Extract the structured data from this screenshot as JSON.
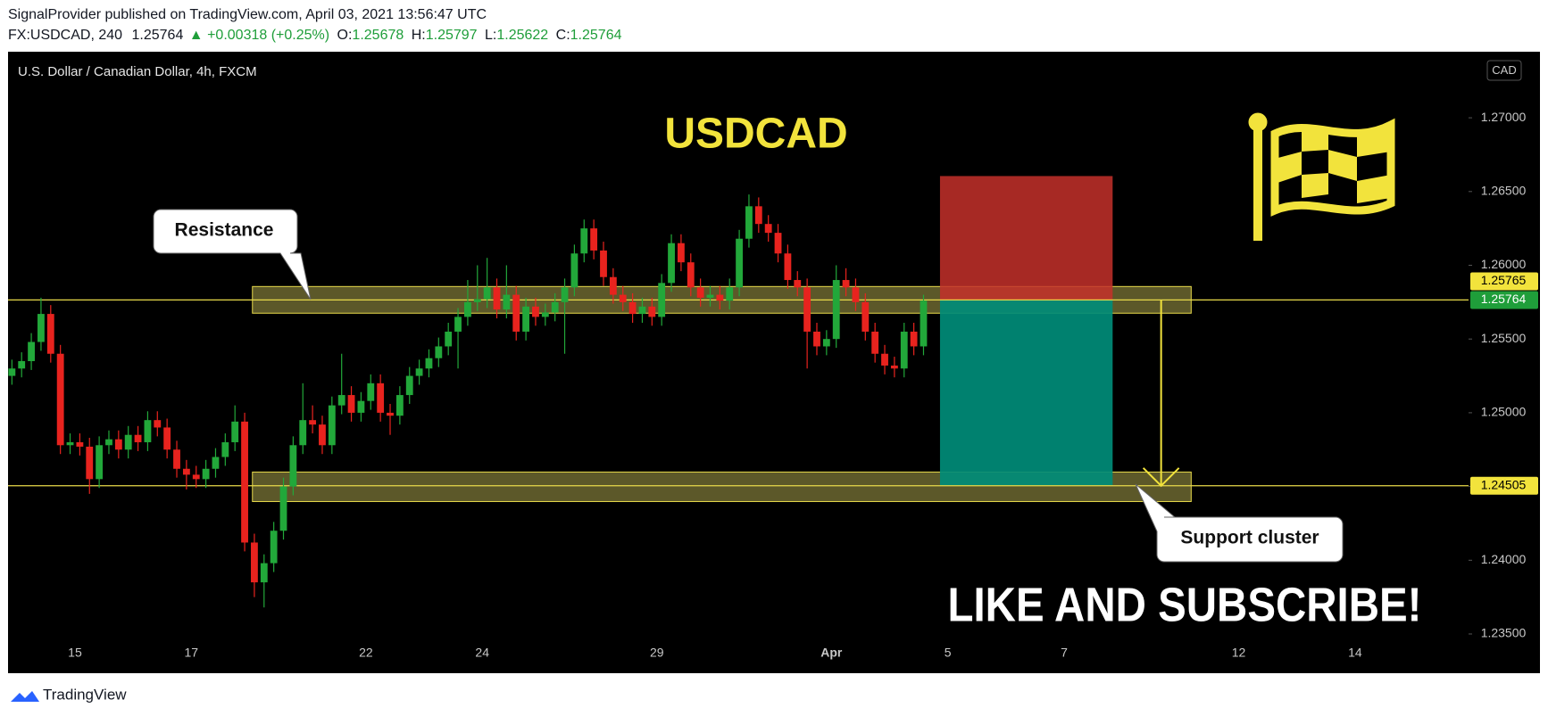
{
  "header": {
    "published": "SignalProvider published on TradingView.com, April 03, 2021 13:56:47 UTC",
    "symbol": "FX:USDCAD, 240",
    "price": "1.25764",
    "change": "▲ +0.00318 (+0.25%)",
    "ohlc": [
      {
        "key": "O:",
        "value": "1.25678"
      },
      {
        "key": "H:",
        "value": "1.25797"
      },
      {
        "key": "L:",
        "value": "1.25622"
      },
      {
        "key": "C:",
        "value": "1.25764"
      }
    ]
  },
  "footer": {
    "brand": "TradingView"
  },
  "chart_data": {
    "type": "candlestick",
    "legend": "U.S. Dollar / Canadian Dollar, 4h, FXCM",
    "currency": "CAD",
    "title": "USDCAD",
    "annotations": [
      "Resistance",
      "Support cluster",
      "LIKE AND SUBSCRIBE!"
    ],
    "up_color": "#22a83a",
    "down_color": "#e8231e",
    "grid": false,
    "xlim": [
      -0.4,
      150.2
    ],
    "xticks": [
      {
        "value": 6.5,
        "label": "15"
      },
      {
        "value": 18.5,
        "label": "17"
      },
      {
        "value": 36.5,
        "label": "22"
      },
      {
        "value": 48.5,
        "label": "24"
      },
      {
        "value": 66.5,
        "label": "29"
      },
      {
        "value": 84.5,
        "label": "Apr"
      },
      {
        "value": 96.5,
        "label": "5"
      },
      {
        "value": 108.5,
        "label": "7"
      },
      {
        "value": 126.5,
        "label": "12"
      },
      {
        "value": 138.5,
        "label": "14"
      }
    ],
    "ylim": [
      1.23234,
      1.27448
    ],
    "yticks": [
      {
        "value": 1.235,
        "label": "1.23500"
      },
      {
        "value": 1.24,
        "label": "1.24000"
      },
      {
        "value": 1.245,
        "label": "1.24500"
      },
      {
        "value": 1.25,
        "label": "1.25000"
      },
      {
        "value": 1.255,
        "label": "1.25500"
      },
      {
        "value": 1.26,
        "label": "1.26000"
      },
      {
        "value": 1.265,
        "label": "1.26500"
      },
      {
        "value": 1.27,
        "label": "1.27000"
      }
    ],
    "open": [
      1.2525,
      1.253,
      1.2535,
      1.2548,
      1.2567,
      1.254,
      1.2478,
      1.248,
      1.2477,
      1.2455,
      1.2478,
      1.2482,
      1.2475,
      1.2485,
      1.248,
      1.2495,
      1.249,
      1.2475,
      1.2462,
      1.2458,
      1.2455,
      1.2462,
      1.247,
      1.248,
      1.2494,
      1.2412,
      1.2385,
      1.2398,
      1.242,
      1.245,
      1.2478,
      1.2495,
      1.2492,
      1.2478,
      1.2505,
      1.2512,
      1.25,
      1.2508,
      1.252,
      1.25,
      1.2498,
      1.2512,
      1.2525,
      1.253,
      1.2537,
      1.2545,
      1.2555,
      1.2565,
      1.2575,
      1.2577,
      1.2585,
      1.257,
      1.258,
      1.2555,
      1.2572,
      1.2565,
      1.2568,
      1.2575,
      1.2585,
      1.2608,
      1.2625,
      1.261,
      1.2592,
      1.258,
      1.2575,
      1.2567,
      1.2572,
      1.2565,
      1.2588,
      1.2615,
      1.2602,
      1.2585,
      1.2578,
      1.258,
      1.2576,
      1.2585,
      1.2618,
      1.264,
      1.2628,
      1.2622,
      1.2608,
      1.259,
      1.2585,
      1.2555,
      1.2545,
      1.255,
      1.259,
      1.2585,
      1.2575,
      1.2555,
      1.254,
      1.2532,
      1.253,
      1.2555,
      1.2545
    ],
    "high": [
      1.2536,
      1.2541,
      1.2554,
      1.2578,
      1.2573,
      1.2546,
      1.2486,
      1.2486,
      1.2483,
      1.2484,
      1.2488,
      1.2488,
      1.2491,
      1.2491,
      1.2501,
      1.2501,
      1.2496,
      1.2481,
      1.2468,
      1.2464,
      1.2468,
      1.2476,
      1.2486,
      1.2505,
      1.25,
      1.2418,
      1.2404,
      1.2426,
      1.2456,
      1.2484,
      1.252,
      1.2505,
      1.2498,
      1.2511,
      1.254,
      1.2518,
      1.2514,
      1.2526,
      1.2526,
      1.2506,
      1.2518,
      1.2531,
      1.2536,
      1.2543,
      1.2551,
      1.2561,
      1.2571,
      1.259,
      1.26,
      1.2605,
      1.2591,
      1.26,
      1.2586,
      1.2578,
      1.2578,
      1.2574,
      1.2581,
      1.2591,
      1.2614,
      1.2631,
      1.2631,
      1.2616,
      1.2598,
      1.2586,
      1.2581,
      1.2578,
      1.2578,
      1.2594,
      1.2621,
      1.2621,
      1.2608,
      1.2591,
      1.2586,
      1.2586,
      1.2591,
      1.2624,
      1.2648,
      1.2646,
      1.2634,
      1.2628,
      1.2614,
      1.2596,
      1.2591,
      1.2561,
      1.2556,
      1.26,
      1.2598,
      1.2591,
      1.2581,
      1.2561,
      1.2546,
      1.2538,
      1.2561,
      1.2561,
      1.258
    ],
    "low": [
      1.2519,
      1.2524,
      1.2529,
      1.2542,
      1.2534,
      1.2472,
      1.2472,
      1.2471,
      1.2445,
      1.2449,
      1.2472,
      1.2469,
      1.2469,
      1.2474,
      1.2474,
      1.2484,
      1.2469,
      1.2456,
      1.2448,
      1.2449,
      1.2449,
      1.2456,
      1.2464,
      1.2474,
      1.2406,
      1.2375,
      1.2368,
      1.2392,
      1.2414,
      1.2444,
      1.2472,
      1.2486,
      1.2472,
      1.2472,
      1.2499,
      1.2494,
      1.2494,
      1.2502,
      1.2494,
      1.2485,
      1.2492,
      1.2506,
      1.2519,
      1.2524,
      1.2531,
      1.2539,
      1.253,
      1.2559,
      1.2569,
      1.2571,
      1.2564,
      1.2564,
      1.2549,
      1.2549,
      1.2559,
      1.2559,
      1.2562,
      1.254,
      1.2579,
      1.2602,
      1.2604,
      1.2586,
      1.2574,
      1.2569,
      1.2561,
      1.2561,
      1.2559,
      1.2559,
      1.2582,
      1.2596,
      1.2579,
      1.2572,
      1.2572,
      1.257,
      1.257,
      1.2579,
      1.2612,
      1.2622,
      1.2616,
      1.2602,
      1.2584,
      1.2579,
      1.253,
      1.2539,
      1.2539,
      1.2544,
      1.2579,
      1.2569,
      1.2549,
      1.2534,
      1.2526,
      1.2524,
      1.2524,
      1.2539,
      1.2539
    ],
    "close": [
      1.253,
      1.2535,
      1.2548,
      1.2567,
      1.254,
      1.2478,
      1.248,
      1.2477,
      1.2455,
      1.2478,
      1.2482,
      1.2475,
      1.2485,
      1.248,
      1.2495,
      1.249,
      1.2475,
      1.2462,
      1.2458,
      1.2455,
      1.2462,
      1.247,
      1.248,
      1.2494,
      1.2412,
      1.2385,
      1.2398,
      1.242,
      1.245,
      1.2478,
      1.2495,
      1.2492,
      1.2478,
      1.2505,
      1.2512,
      1.25,
      1.2508,
      1.252,
      1.25,
      1.2498,
      1.2512,
      1.2525,
      1.253,
      1.2537,
      1.2545,
      1.2555,
      1.2565,
      1.2575,
      1.2577,
      1.2585,
      1.257,
      1.258,
      1.2555,
      1.2572,
      1.2565,
      1.2568,
      1.2575,
      1.2585,
      1.2608,
      1.2625,
      1.261,
      1.2592,
      1.258,
      1.2575,
      1.2567,
      1.2572,
      1.2565,
      1.2588,
      1.2615,
      1.2602,
      1.2585,
      1.2578,
      1.258,
      1.2576,
      1.2585,
      1.2618,
      1.264,
      1.2628,
      1.2622,
      1.2608,
      1.259,
      1.2585,
      1.2555,
      1.2545,
      1.255,
      1.259,
      1.2585,
      1.2575,
      1.2555,
      1.254,
      1.2532,
      1.253,
      1.2555,
      1.2545,
      1.2576
    ],
    "zones": [
      {
        "top": 1.25856,
        "bottom": 1.25675,
        "x": [
          24.8,
          121.6
        ]
      },
      {
        "top": 1.24598,
        "bottom": 1.24398,
        "x": [
          24.8,
          121.6
        ]
      }
    ],
    "hlines": [
      1.25765,
      1.24505
    ],
    "last_price": 1.25764,
    "position": {
      "stop": 1.26605,
      "entry": 1.25765,
      "target": 1.24505,
      "x": [
        95.7,
        113.5
      ]
    },
    "arrow": {
      "x": 118.5,
      "from": 1.25765,
      "to": 1.24505
    }
  }
}
